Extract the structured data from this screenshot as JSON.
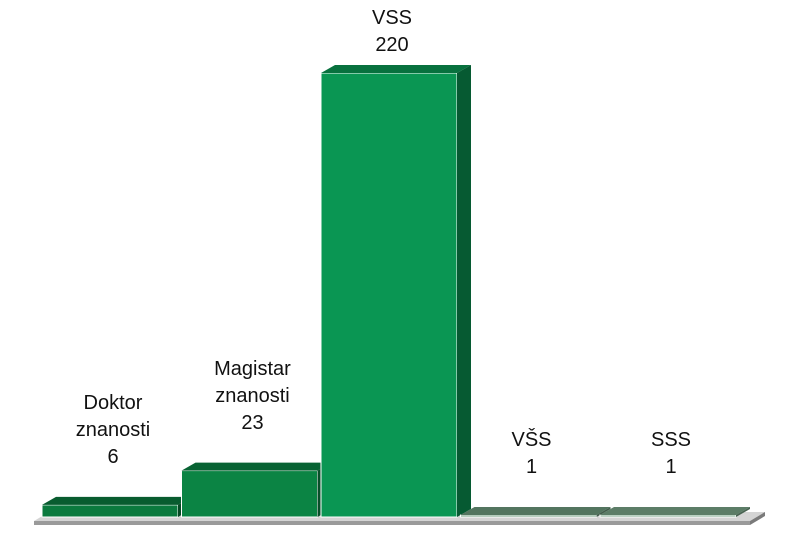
{
  "chart_data": {
    "type": "bar3d",
    "categories": [
      "Doktor znanosti",
      "Magistar znanosti",
      "VSS",
      "VŠS",
      "SSS"
    ],
    "values": [
      6,
      23,
      220,
      1,
      1
    ],
    "colors": [
      "#0b7a3e",
      "#0b8444",
      "#0a9653",
      "#6e9c7e",
      "#7aa689"
    ]
  }
}
